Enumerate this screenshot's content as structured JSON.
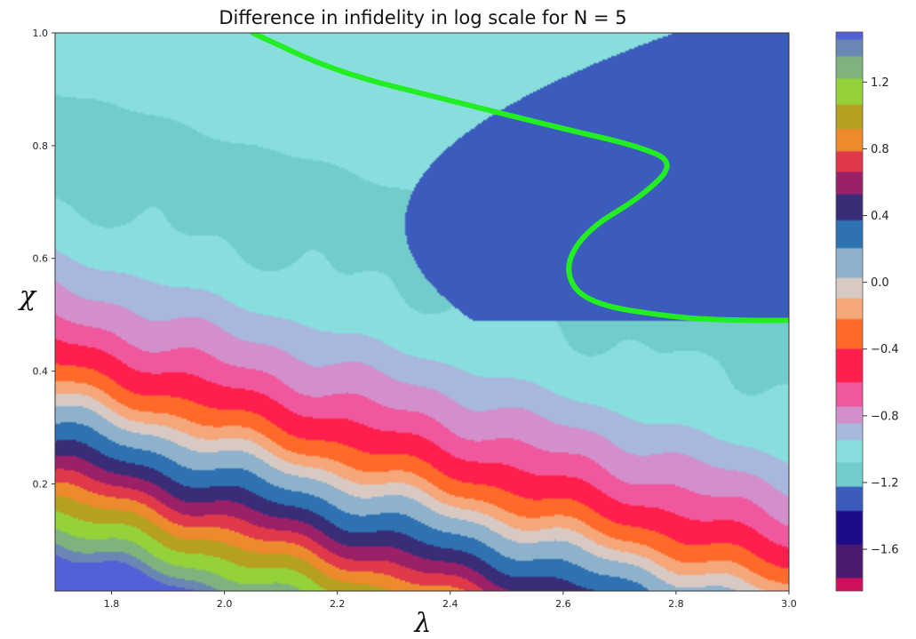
{
  "chart_data": {
    "type": "contour",
    "title": "Difference in infidelity in log scale for N = 5",
    "xlabel": "λ",
    "ylabel": "χ",
    "xlim": [
      1.7,
      3.0
    ],
    "ylim": [
      0.01,
      1.0
    ],
    "x_ticks": [
      "1.8",
      "2.0",
      "2.2",
      "2.4",
      "2.6",
      "2.8",
      "3.0"
    ],
    "x_tick_values": [
      1.8,
      2.0,
      2.2,
      2.4,
      2.6,
      2.8,
      3.0
    ],
    "y_ticks": [
      "0.2",
      "0.4",
      "0.6",
      "0.8",
      "1.0"
    ],
    "y_tick_values": [
      0.2,
      0.4,
      0.6,
      0.8,
      1.0
    ],
    "colorbar": {
      "min": -1.85,
      "max": 1.5,
      "ticks": [
        "−1.6",
        "−1.2",
        "−0.8",
        "−0.4",
        "0.0",
        "0.4",
        "0.8",
        "1.2"
      ],
      "tick_values": [
        -1.6,
        -1.2,
        -0.8,
        -0.4,
        0.0,
        0.4,
        0.8,
        1.2
      ]
    },
    "palette": [
      {
        "v": -1.85,
        "color": "#d0105e"
      },
      {
        "v": -1.7,
        "color": "#4a1a6e"
      },
      {
        "v": -1.45,
        "color": "#1c0c8a"
      },
      {
        "v": -1.3,
        "color": "#3b5cbc"
      },
      {
        "v": -1.15,
        "color": "#73cccc"
      },
      {
        "v": -1.0,
        "color": "#88dedd"
      },
      {
        "v": -0.9,
        "color": "#a8b7dd"
      },
      {
        "v": -0.8,
        "color": "#d28fcb"
      },
      {
        "v": -0.7,
        "color": "#f0579d"
      },
      {
        "v": -0.5,
        "color": "#ff1e4c"
      },
      {
        "v": -0.3,
        "color": "#ff6a2a"
      },
      {
        "v": -0.15,
        "color": "#f5a77a"
      },
      {
        "v": -0.05,
        "color": "#d8c9c3"
      },
      {
        "v": 0.1,
        "color": "#8fb2cc"
      },
      {
        "v": 0.3,
        "color": "#2e72b2"
      },
      {
        "v": 0.45,
        "color": "#3a2d78"
      },
      {
        "v": 0.6,
        "color": "#9a2068"
      },
      {
        "v": 0.72,
        "color": "#e03a4a"
      },
      {
        "v": 0.85,
        "color": "#ee8a2e"
      },
      {
        "v": 0.98,
        "color": "#b5a020"
      },
      {
        "v": 1.15,
        "color": "#95d23a"
      },
      {
        "v": 1.3,
        "color": "#7eb37d"
      },
      {
        "v": 1.42,
        "color": "#6a87b4"
      },
      {
        "v": 1.5,
        "color": "#5360d6"
      }
    ],
    "annotation_curve": {
      "color": "#22ee22",
      "points": [
        [
          2.05,
          1.0
        ],
        [
          2.2,
          0.93
        ],
        [
          2.4,
          0.88
        ],
        [
          2.6,
          0.83
        ],
        [
          2.73,
          0.8
        ],
        [
          2.8,
          0.77
        ],
        [
          2.74,
          0.71
        ],
        [
          2.64,
          0.65
        ],
        [
          2.6,
          0.58
        ],
        [
          2.64,
          0.52
        ],
        [
          2.8,
          0.495
        ],
        [
          2.9,
          0.49
        ],
        [
          3.01,
          0.49
        ]
      ]
    },
    "grid": false
  }
}
